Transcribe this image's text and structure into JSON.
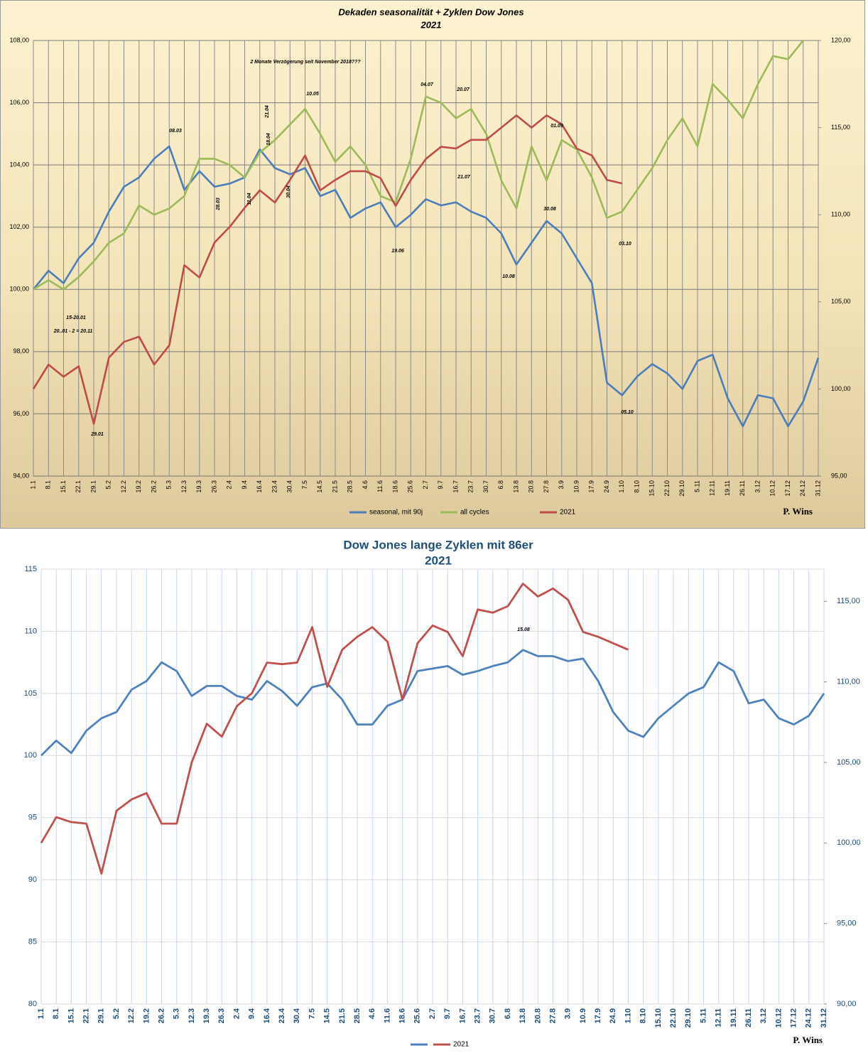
{
  "chart_data": [
    {
      "type": "line",
      "title": "Dekaden seasonalität + Zyklen Dow Jones",
      "subtitle": "2021",
      "categories": [
        "1.1",
        "8.1",
        "15.1",
        "22.1",
        "29.1",
        "5.2",
        "12.2",
        "19.2",
        "26.2",
        "5.3",
        "12.3",
        "19.3",
        "26.3",
        "2.4",
        "9.4",
        "16.4",
        "23.4",
        "30.4",
        "7.5",
        "14.5",
        "21.5",
        "28.5",
        "4.6",
        "11.6",
        "18.6",
        "25.6",
        "2.7",
        "9.7",
        "16.7",
        "23.7",
        "30.7",
        "6.8",
        "13.8",
        "20.8",
        "27.8",
        "3.9",
        "10.9",
        "17.9",
        "24.9",
        "1.10",
        "8.10",
        "15.10",
        "22.10",
        "29.10",
        "5.11",
        "12.11",
        "19.11",
        "26.11",
        "3.12",
        "10.12",
        "17.12",
        "24.12",
        "31.12"
      ],
      "series": [
        {
          "name": "seasonal, mit 90j",
          "color": "#4a7ebb",
          "values": [
            100,
            100.6,
            100.2,
            101,
            101.5,
            102.5,
            103.3,
            103.6,
            104.2,
            104.6,
            103.2,
            103.8,
            103.3,
            103.4,
            103.6,
            104.5,
            103.9,
            103.7,
            103.9,
            103,
            103.2,
            102.3,
            102.6,
            102.8,
            102,
            102.4,
            102.9,
            102.7,
            102.8,
            102.5,
            102.3,
            101.8,
            100.8,
            101.5,
            102.2,
            101.8,
            101,
            100.2,
            97,
            96.6,
            97.2,
            97.6,
            97.3,
            96.8,
            97.7,
            97.9,
            96.5,
            95.6,
            96.6,
            96.5,
            95.6,
            96.4,
            97.8
          ]
        },
        {
          "name": "all cycles",
          "color": "#9bbb59",
          "values": [
            100,
            100.3,
            100,
            100.4,
            100.9,
            101.5,
            101.8,
            102.7,
            102.4,
            102.6,
            103,
            104.2,
            104.2,
            104,
            103.6,
            104.4,
            104.8,
            105.3,
            105.8,
            105,
            104.1,
            104.6,
            104,
            103,
            102.8,
            104.2,
            106.2,
            106,
            105.5,
            105.8,
            105,
            103.5,
            102.6,
            104.6,
            103.5,
            104.8,
            104.5,
            103.6,
            102.3,
            102.5,
            103.2,
            103.9,
            104.8,
            105.5,
            104.6,
            106.6,
            106.1,
            105.5,
            106.6,
            107.5,
            107.4,
            108,
            null
          ]
        },
        {
          "name": "2021",
          "color": "#be4b48",
          "axis": "y2",
          "values": [
            100,
            101.4,
            100.7,
            101.3,
            98,
            101.8,
            102.7,
            103,
            101.4,
            102.5,
            107.1,
            106.4,
            108.4,
            109.3,
            110.4,
            111.4,
            110.7,
            112,
            113.4,
            111.4,
            112,
            112.5,
            112.5,
            112.1,
            110.5,
            112,
            113.2,
            113.9,
            113.8,
            114.3,
            114.3,
            115,
            115.7,
            115,
            115.7,
            115.2,
            113.8,
            113.4,
            112,
            111.8,
            null,
            null,
            null,
            null,
            null,
            null,
            null,
            null,
            null,
            null,
            null,
            null,
            null
          ]
        }
      ],
      "ylim": [
        94,
        108
      ],
      "yticks": [
        {
          "value": 94,
          "label": "94,00"
        },
        {
          "value": 96,
          "label": "96,00"
        },
        {
          "value": 98,
          "label": "98,00"
        },
        {
          "value": 100,
          "label": "100,00"
        },
        {
          "value": 102,
          "label": "102,00"
        },
        {
          "value": 104,
          "label": "104,00"
        },
        {
          "value": 106,
          "label": "106,00"
        },
        {
          "value": 108,
          "label": "108,00"
        }
      ],
      "y2lim": [
        95,
        120
      ],
      "y2ticks": [
        {
          "value": 95,
          "label": "95,00"
        },
        {
          "value": 100,
          "label": "100,00"
        },
        {
          "value": 105,
          "label": "105,00"
        },
        {
          "value": 110,
          "label": "110,00"
        },
        {
          "value": 115,
          "label": "115,00"
        },
        {
          "value": 120,
          "label": "120,00"
        }
      ],
      "grid": true,
      "annotations": [
        "2 Monate Verzögerung seit November 2018???",
        "08.03",
        "21.04",
        "18.04",
        "10.05",
        "04.07",
        "20.07",
        "21.07",
        "01.09",
        "30.08",
        "10.08",
        "19.06",
        "03.10",
        "05.10",
        "28.03",
        "11.04",
        "30.04",
        "15-20.01",
        "20..01 - 2 = 20.11",
        "29.01"
      ],
      "signature": "P. Wins"
    },
    {
      "type": "line",
      "title": "Dow Jones lange Zyklen mit 86er",
      "subtitle": "2021",
      "categories": [
        "1.1",
        "8.1",
        "15.1",
        "22.1",
        "29.1",
        "5.2",
        "12.2",
        "19.2",
        "26.2",
        "5.3",
        "12.3",
        "19.3",
        "26.3",
        "2.4",
        "9.4",
        "16.4",
        "23.4",
        "30.4",
        "7.5",
        "14.5",
        "21.5",
        "28.5",
        "4.6",
        "11.6",
        "18.6",
        "25.6",
        "2.7",
        "9.7",
        "16.7",
        "23.7",
        "30.7",
        "6.8",
        "13.8",
        "20.8",
        "27.8",
        "3.9",
        "10.9",
        "17.9",
        "24.9",
        "1.10",
        "8.10",
        "15.10",
        "22.10",
        "29.10",
        "5.11",
        "12.11",
        "19.11",
        "26.11",
        "3.12",
        "10.12",
        "17.12",
        "24.12",
        "31.12"
      ],
      "series": [
        {
          "color": "#4f81bd",
          "values": [
            100,
            101.2,
            100.2,
            102,
            103,
            103.5,
            105.3,
            106,
            107.5,
            106.8,
            104.8,
            105.6,
            105.6,
            104.8,
            104.5,
            106,
            105.2,
            104,
            105.5,
            105.8,
            104.5,
            102.5,
            102.5,
            104,
            104.5,
            106.8,
            107,
            107.2,
            106.5,
            106.8,
            107.2,
            107.5,
            108.5,
            108,
            108,
            107.6,
            107.8,
            106,
            103.5,
            102,
            101.5,
            103,
            104,
            105,
            105.5,
            107.5,
            106.8,
            104.2,
            104.5,
            103,
            102.5,
            103.2,
            105
          ]
        },
        {
          "name": "2021",
          "color": "#c0504d",
          "axis": "y2",
          "values": [
            100,
            101.6,
            101.3,
            101.2,
            98.1,
            102,
            102.7,
            103.1,
            101.2,
            101.2,
            105,
            107.4,
            106.6,
            108.5,
            109.3,
            111.2,
            111.1,
            111.2,
            113.4,
            109.7,
            112,
            112.8,
            113.4,
            112.5,
            108.9,
            112.4,
            113.5,
            113.1,
            111.6,
            114.5,
            114.3,
            114.7,
            116.1,
            115.3,
            115.8,
            115.1,
            113.1,
            112.8,
            112.4,
            112,
            null,
            null,
            null,
            null,
            null,
            null,
            null,
            null,
            null,
            null,
            null,
            null,
            null
          ]
        }
      ],
      "ylim": [
        80,
        115
      ],
      "yticks": [
        80,
        85,
        90,
        95,
        100,
        105,
        110,
        115
      ],
      "y2lim": [
        90,
        117
      ],
      "y2ticks": [
        {
          "value": 90,
          "label": "90,00"
        },
        {
          "value": 95,
          "label": "95,00"
        },
        {
          "value": 100,
          "label": "100,00"
        },
        {
          "value": 105,
          "label": "105,00"
        },
        {
          "value": 110,
          "label": "110,00"
        },
        {
          "value": 115,
          "label": "115,00"
        }
      ],
      "grid": true,
      "annotations": [
        "15.08"
      ],
      "signature": "P. Wins"
    }
  ]
}
